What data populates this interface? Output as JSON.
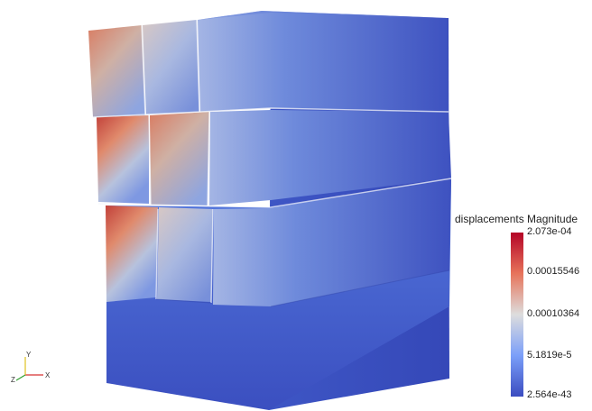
{
  "colorbar": {
    "title": "displacements Magnitude",
    "ticks": [
      "2.073e-04",
      "0.00015546",
      "0.00010364",
      "5.1819e-5",
      "2.564e-43"
    ],
    "colors": {
      "high": "#b40426",
      "mid": "#dddddd",
      "low": "#3b4cc0"
    }
  },
  "orientation_axes": {
    "x_label": "X",
    "y_label": "Y",
    "z_label": "Z"
  }
}
